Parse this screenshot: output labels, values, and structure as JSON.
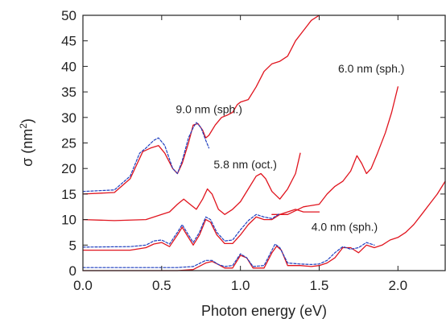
{
  "chart_data": {
    "type": "line",
    "xlabel": "Photon energy (eV)",
    "ylabel_base": "σ (nm",
    "ylabel_sup": "2",
    "ylabel_close": ")",
    "xlim": [
      0.0,
      2.3
    ],
    "ylim": [
      0,
      50
    ],
    "x_ticks": [
      0.0,
      0.5,
      1.0,
      1.5,
      2.0
    ],
    "x_tick_labels": [
      "0.0",
      "0.5",
      "1.0",
      "1.5",
      "2.0"
    ],
    "y_ticks": [
      0,
      5,
      10,
      15,
      20,
      25,
      30,
      35,
      40,
      45,
      50
    ],
    "y_tick_labels": [
      "0",
      "5",
      "10",
      "15",
      "20",
      "25",
      "30",
      "35",
      "40",
      "45",
      "50"
    ],
    "grid": false,
    "legend": "none",
    "colors": {
      "solid": "#e0141e",
      "dashed": "#1f3fbf",
      "axis": "#222222"
    },
    "annotations": [
      {
        "text": "9.0 nm (sph.)",
        "x": 0.59,
        "y": 30.8
      },
      {
        "text": "6.0 nm (sph.)",
        "x": 1.62,
        "y": 38.8
      },
      {
        "text": "5.8 nm (oct.)",
        "x": 0.83,
        "y": 20.0
      },
      {
        "text": "4.0 nm (sph.)",
        "x": 1.45,
        "y": 7.8
      }
    ],
    "series": [
      {
        "style": "solid",
        "points": [
          [
            0.0,
            15
          ],
          [
            0.2,
            15.3
          ],
          [
            0.3,
            18
          ],
          [
            0.38,
            23.3
          ],
          [
            0.43,
            24
          ],
          [
            0.48,
            24.5
          ],
          [
            0.52,
            23
          ],
          [
            0.57,
            20
          ],
          [
            0.6,
            19
          ],
          [
            0.63,
            21
          ],
          [
            0.67,
            25
          ],
          [
            0.7,
            28.5
          ],
          [
            0.73,
            28.8
          ],
          [
            0.76,
            27.5
          ],
          [
            0.78,
            26
          ],
          [
            0.8,
            26.5
          ],
          [
            0.84,
            28.5
          ],
          [
            0.88,
            30
          ],
          [
            0.92,
            30.5
          ],
          [
            0.95,
            31
          ],
          [
            0.98,
            32.5
          ],
          [
            1.0,
            33
          ],
          [
            1.05,
            33.5
          ],
          [
            1.1,
            36
          ],
          [
            1.15,
            39
          ],
          [
            1.2,
            40.5
          ],
          [
            1.25,
            41
          ],
          [
            1.3,
            42
          ],
          [
            1.35,
            45
          ],
          [
            1.4,
            47
          ],
          [
            1.45,
            49
          ],
          [
            1.5,
            50
          ]
        ]
      },
      {
        "style": "dashed",
        "points": [
          [
            0.0,
            15.5
          ],
          [
            0.2,
            15.8
          ],
          [
            0.3,
            18.5
          ],
          [
            0.36,
            23
          ],
          [
            0.4,
            24
          ],
          [
            0.45,
            25.5
          ],
          [
            0.48,
            26
          ],
          [
            0.52,
            24.5
          ],
          [
            0.57,
            20
          ],
          [
            0.6,
            19
          ],
          [
            0.63,
            21.5
          ],
          [
            0.67,
            26
          ],
          [
            0.7,
            28
          ],
          [
            0.72,
            29
          ],
          [
            0.75,
            28
          ],
          [
            0.78,
            25.5
          ],
          [
            0.8,
            24
          ]
        ]
      },
      {
        "style": "solid",
        "points": [
          [
            0.0,
            10
          ],
          [
            0.2,
            9.8
          ],
          [
            0.4,
            10
          ],
          [
            0.5,
            11
          ],
          [
            0.55,
            11.5
          ],
          [
            0.6,
            13
          ],
          [
            0.64,
            14
          ],
          [
            0.68,
            13
          ],
          [
            0.72,
            12
          ],
          [
            0.76,
            14
          ],
          [
            0.79,
            16
          ],
          [
            0.82,
            15
          ],
          [
            0.86,
            12
          ],
          [
            0.9,
            11
          ],
          [
            0.95,
            12
          ],
          [
            1.0,
            13.5
          ],
          [
            1.05,
            16
          ],
          [
            1.1,
            18.5
          ],
          [
            1.13,
            19
          ],
          [
            1.16,
            18
          ],
          [
            1.2,
            15.5
          ],
          [
            1.25,
            14
          ],
          [
            1.3,
            16
          ],
          [
            1.35,
            19
          ],
          [
            1.38,
            23
          ]
        ]
      },
      {
        "style": "solid",
        "points": [
          [
            1.2,
            11
          ],
          [
            1.3,
            11
          ],
          [
            1.4,
            12.5
          ],
          [
            1.5,
            13
          ],
          [
            1.55,
            15
          ],
          [
            1.6,
            16.5
          ],
          [
            1.65,
            17.5
          ],
          [
            1.7,
            19.5
          ],
          [
            1.74,
            22.5
          ],
          [
            1.77,
            21
          ],
          [
            1.8,
            19
          ],
          [
            1.83,
            20
          ],
          [
            1.87,
            23
          ],
          [
            1.92,
            27
          ],
          [
            1.96,
            31
          ],
          [
            2.0,
            36
          ]
        ]
      },
      {
        "style": "solid",
        "points": [
          [
            0.0,
            4
          ],
          [
            0.3,
            4
          ],
          [
            0.4,
            4.5
          ],
          [
            0.45,
            5.2
          ],
          [
            0.5,
            5.5
          ],
          [
            0.55,
            4.7
          ],
          [
            0.6,
            7
          ],
          [
            0.63,
            8.5
          ],
          [
            0.66,
            7
          ],
          [
            0.7,
            5
          ],
          [
            0.74,
            7
          ],
          [
            0.78,
            10
          ],
          [
            0.81,
            9.5
          ],
          [
            0.85,
            7
          ],
          [
            0.9,
            5.3
          ],
          [
            0.95,
            5.3
          ],
          [
            1.0,
            7
          ],
          [
            1.05,
            9
          ],
          [
            1.1,
            10.5
          ],
          [
            1.15,
            10
          ],
          [
            1.2,
            10
          ],
          [
            1.25,
            11
          ],
          [
            1.3,
            11.5
          ],
          [
            1.35,
            12
          ],
          [
            1.4,
            11.5
          ],
          [
            1.5,
            11.5
          ]
        ]
      },
      {
        "style": "dashed",
        "points": [
          [
            0.0,
            4.6
          ],
          [
            0.3,
            4.7
          ],
          [
            0.4,
            5
          ],
          [
            0.45,
            5.8
          ],
          [
            0.5,
            6
          ],
          [
            0.55,
            5.2
          ],
          [
            0.6,
            7.5
          ],
          [
            0.63,
            9
          ],
          [
            0.66,
            7.5
          ],
          [
            0.7,
            5.5
          ],
          [
            0.74,
            7.5
          ],
          [
            0.78,
            10.5
          ],
          [
            0.81,
            10
          ],
          [
            0.85,
            7.5
          ],
          [
            0.9,
            5.8
          ],
          [
            0.95,
            6
          ],
          [
            1.0,
            8
          ],
          [
            1.05,
            9.8
          ],
          [
            1.1,
            11
          ],
          [
            1.15,
            10.5
          ],
          [
            1.2,
            10.2
          ],
          [
            1.25,
            11.2
          ]
        ]
      },
      {
        "style": "solid",
        "points": [
          [
            0.0,
            0
          ],
          [
            0.6,
            0
          ],
          [
            0.7,
            0.2
          ],
          [
            0.78,
            1.5
          ],
          [
            0.82,
            1.8
          ],
          [
            0.86,
            1.2
          ],
          [
            0.9,
            0.5
          ],
          [
            0.95,
            0.5
          ],
          [
            1.0,
            3
          ],
          [
            1.04,
            2.5
          ],
          [
            1.08,
            0.5
          ],
          [
            1.15,
            0.5
          ],
          [
            1.2,
            3.5
          ],
          [
            1.23,
            4.8
          ],
          [
            1.26,
            4
          ],
          [
            1.3,
            1
          ],
          [
            1.38,
            1
          ],
          [
            1.45,
            0.8
          ],
          [
            1.5,
            1
          ],
          [
            1.55,
            1.5
          ],
          [
            1.6,
            2.5
          ],
          [
            1.65,
            4.5
          ],
          [
            1.7,
            4.5
          ],
          [
            1.75,
            3.5
          ],
          [
            1.8,
            5
          ],
          [
            1.85,
            4.5
          ],
          [
            1.9,
            5
          ],
          [
            1.95,
            6
          ],
          [
            2.0,
            6.5
          ],
          [
            2.05,
            7.5
          ],
          [
            2.1,
            9
          ],
          [
            2.15,
            11
          ],
          [
            2.2,
            13
          ],
          [
            2.25,
            15
          ],
          [
            2.3,
            17.5
          ]
        ]
      },
      {
        "style": "dashed",
        "points": [
          [
            0.0,
            0.6
          ],
          [
            0.6,
            0.6
          ],
          [
            0.7,
            0.8
          ],
          [
            0.78,
            2
          ],
          [
            0.82,
            2
          ],
          [
            0.86,
            1.2
          ],
          [
            0.9,
            0.8
          ],
          [
            0.95,
            1
          ],
          [
            1.0,
            3.3
          ],
          [
            1.04,
            2.5
          ],
          [
            1.08,
            0.8
          ],
          [
            1.15,
            1
          ],
          [
            1.2,
            4
          ],
          [
            1.22,
            5.2
          ],
          [
            1.25,
            4.5
          ],
          [
            1.3,
            1.5
          ],
          [
            1.38,
            1.3
          ],
          [
            1.45,
            1.2
          ],
          [
            1.5,
            1.3
          ],
          [
            1.55,
            2
          ],
          [
            1.6,
            3.5
          ],
          [
            1.65,
            4.7
          ],
          [
            1.7,
            4.2
          ],
          [
            1.75,
            4.5
          ],
          [
            1.8,
            5.5
          ],
          [
            1.85,
            5
          ]
        ]
      }
    ]
  }
}
